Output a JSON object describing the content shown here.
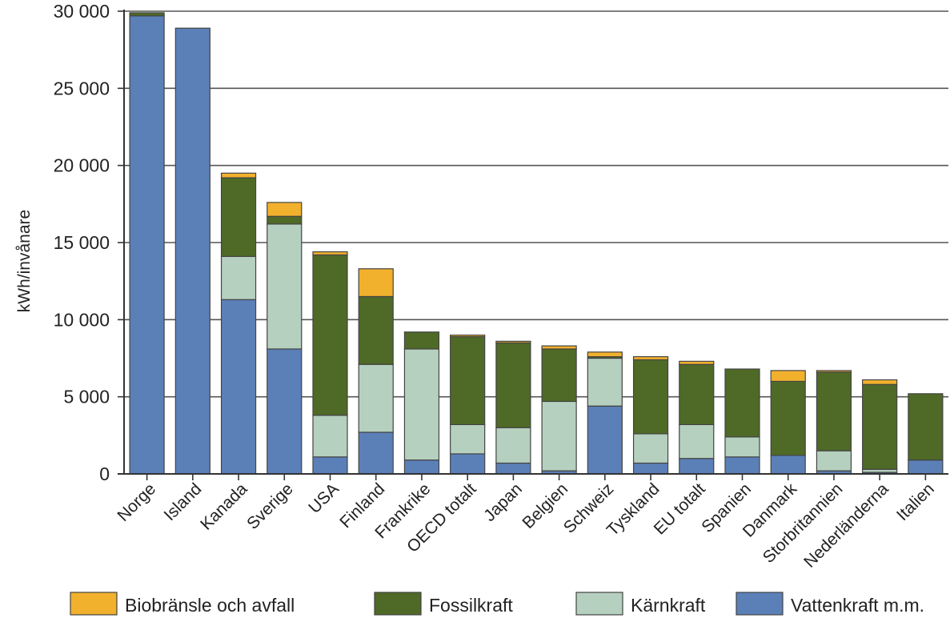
{
  "chart_data": {
    "type": "bar",
    "stacked": true,
    "ylabel": "kWh/invånare",
    "ylim": [
      0,
      30000
    ],
    "yticks": [
      0,
      5000,
      10000,
      15000,
      20000,
      25000,
      30000
    ],
    "ytick_labels": [
      "0",
      "5 000",
      "10 000",
      "15 000",
      "20 000",
      "25 000",
      "30 000"
    ],
    "grid": true,
    "legend_position": "bottom",
    "categories": [
      "Norge",
      "Island",
      "Kanada",
      "Sverige",
      "USA",
      "Finland",
      "Frankrike",
      "OECD totalt",
      "Japan",
      "Belgien",
      "Schweiz",
      "Tyskland",
      "EU totalt",
      "Spanien",
      "Danmark",
      "Storbritannien",
      "Nederländerna",
      "Italien"
    ],
    "series": [
      {
        "name": "Vattenkraft m.m.",
        "color": "#5b80b8",
        "values": [
          29700,
          28900,
          11300,
          8100,
          1100,
          2700,
          900,
          1300,
          700,
          200,
          4400,
          700,
          1000,
          1100,
          1200,
          200,
          100,
          900
        ]
      },
      {
        "name": "Kärnkraft",
        "color": "#b5d0be",
        "values": [
          0,
          0,
          2800,
          8100,
          2700,
          4400,
          7200,
          1900,
          2300,
          4500,
          3100,
          1900,
          2200,
          1300,
          0,
          1300,
          200,
          0
        ]
      },
      {
        "name": "Fossilkraft",
        "color": "#4e6a26",
        "values": [
          200,
          0,
          5100,
          500,
          10400,
          4400,
          1100,
          5700,
          5500,
          3400,
          100,
          4800,
          3900,
          4400,
          4800,
          5100,
          5500,
          4300
        ]
      },
      {
        "name": "Biobränsle och avfall",
        "color": "#f2b12d",
        "values": [
          0,
          0,
          300,
          900,
          200,
          1800,
          0,
          100,
          100,
          200,
          300,
          200,
          200,
          0,
          700,
          100,
          300,
          0
        ]
      }
    ],
    "legend_order": [
      "Biobränsle och avfall",
      "Fossilkraft",
      "Kärnkraft",
      "Vattenkraft m.m."
    ]
  }
}
